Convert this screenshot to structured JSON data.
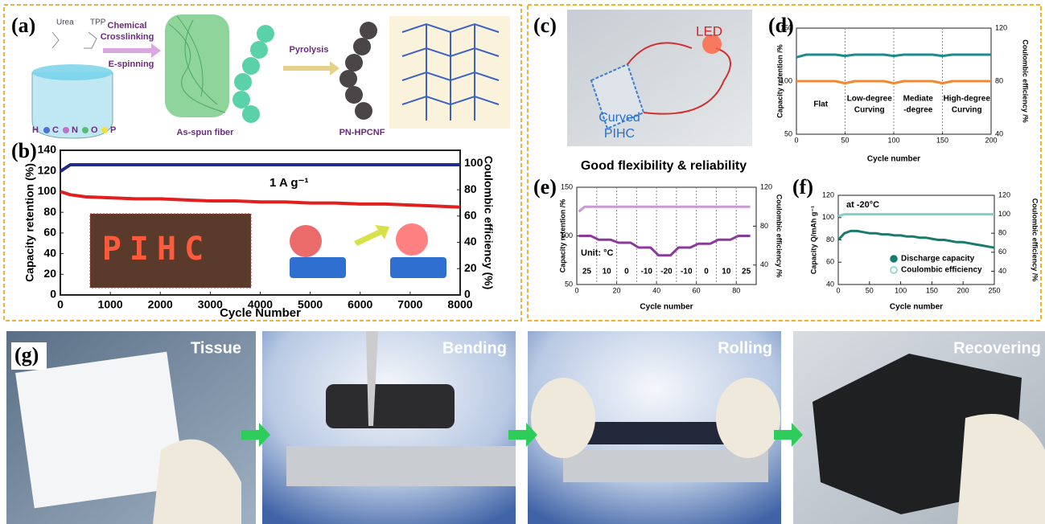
{
  "panel_a": {
    "label": "(a)",
    "urea": "Urea",
    "tpp": "TPP",
    "step1": [
      "Chemical",
      "Crosslinking"
    ],
    "step2": "E-spinning",
    "step3": "Pyrolysis",
    "fiber": "As-spun fiber",
    "product": "PN-HPCNF",
    "elements": [
      "H",
      "C",
      "N",
      "O",
      "P"
    ]
  },
  "panel_b": {
    "inset": "PIHC"
  },
  "panel_c": {
    "label": "(c)",
    "led": "LED",
    "device": [
      "Curved",
      "PIHC"
    ],
    "caption": "Good flexibility & reliability"
  },
  "panel_g": {
    "label": "(g)",
    "photos": [
      "Tissue",
      "Bending",
      "Rolling",
      "Recovering"
    ]
  },
  "chart_data": [
    {
      "type": "line",
      "label": "(b)",
      "annotation": "1 A g⁻¹",
      "xlabel": "Cycle Number",
      "ylabel": "Capacity retention (%)",
      "y2label": "Coulombic efficiency (%)",
      "x": [
        0,
        200,
        500,
        1000,
        1500,
        2000,
        2500,
        3000,
        3500,
        4000,
        4500,
        5000,
        5500,
        6000,
        6500,
        7000,
        7500,
        8000
      ],
      "series": [
        {
          "color": "#e02020",
          "values": [
            100,
            97,
            95,
            94,
            93,
            93,
            92,
            91,
            91,
            90,
            90,
            89,
            89,
            88,
            88,
            87,
            86,
            85
          ]
        },
        {
          "color": "#1f2a8a",
          "axis": "y2",
          "values": [
            94,
            99,
            99,
            99,
            99,
            99,
            99,
            99,
            99,
            99,
            99,
            99,
            99,
            99,
            99,
            99,
            99,
            99
          ]
        }
      ],
      "xlim": [
        0,
        8000
      ],
      "xticks": [
        0,
        1000,
        2000,
        3000,
        4000,
        5000,
        6000,
        7000,
        8000
      ],
      "ylim": [
        0,
        140
      ],
      "yticks": [
        0,
        20,
        40,
        60,
        80,
        100,
        120,
        140
      ],
      "y2lim": [
        0,
        110
      ],
      "y2ticks": [
        0,
        20,
        40,
        60,
        80,
        100
      ]
    },
    {
      "type": "line",
      "label": "(d)",
      "xlabel": "Cycle number",
      "ylabel": "Capacity retention /%",
      "y2label": "Coulombic efficiency /%",
      "x": [
        0,
        10,
        20,
        30,
        40,
        50,
        60,
        70,
        80,
        90,
        100,
        110,
        120,
        130,
        140,
        150,
        160,
        170,
        180,
        190,
        200
      ],
      "series": [
        {
          "color": "#f08a30",
          "values": [
            100,
            100,
            100,
            100,
            100,
            98,
            100,
            100,
            100,
            100,
            98,
            100,
            100,
            100,
            100,
            98,
            100,
            100,
            100,
            100,
            100
          ]
        },
        {
          "color": "#1a8c8c",
          "axis": "y2",
          "values": [
            98,
            100,
            100,
            100,
            100,
            99,
            100,
            100,
            100,
            100,
            99,
            100,
            100,
            100,
            100,
            99,
            100,
            100,
            100,
            100,
            100
          ]
        }
      ],
      "dividers": [
        50,
        100,
        150
      ],
      "regions": [
        [
          "Flat"
        ],
        [
          "Low-degree",
          "Curving"
        ],
        [
          "Mediate",
          "-degree"
        ],
        [
          "High-degree",
          "Curving"
        ]
      ],
      "xlim": [
        0,
        200
      ],
      "xticks": [
        0,
        50,
        100,
        150,
        200
      ],
      "ylim": [
        50,
        150
      ],
      "yticks": [
        50,
        100,
        150
      ],
      "y2lim": [
        40,
        120
      ],
      "y2ticks": [
        40,
        80,
        120
      ]
    },
    {
      "type": "line",
      "label": "(e)",
      "annotation": "Unit: °C",
      "xlabel": "Cycle number",
      "ylabel": "Capacity retention /%",
      "y2label": "Coulombic efficiency /%",
      "x": [
        1,
        4,
        7,
        11,
        14,
        17,
        21,
        24,
        27,
        31,
        34,
        37,
        41,
        44,
        47,
        51,
        54,
        57,
        61,
        64,
        67,
        71,
        74,
        77,
        81,
        84,
        87
      ],
      "series": [
        {
          "color": "#8a3a9a",
          "values": [
            100,
            100,
            100,
            96,
            96,
            96,
            93,
            93,
            93,
            88,
            88,
            88,
            80,
            80,
            80,
            88,
            88,
            88,
            92,
            92,
            92,
            96,
            96,
            96,
            100,
            100,
            100
          ]
        },
        {
          "color": "#c99ad4",
          "axis": "y2",
          "values": [
            95,
            100,
            100,
            100,
            100,
            100,
            100,
            100,
            100,
            100,
            100,
            100,
            100,
            100,
            100,
            100,
            100,
            100,
            100,
            100,
            100,
            100,
            100,
            100,
            100,
            100,
            100
          ]
        }
      ],
      "dividers": [
        10,
        20,
        30,
        40,
        50,
        60,
        70,
        80
      ],
      "regions": [
        [
          "25"
        ],
        [
          "10"
        ],
        [
          "0"
        ],
        [
          "-10"
        ],
        [
          "-20"
        ],
        [
          "-10"
        ],
        [
          "0"
        ],
        [
          "10"
        ],
        [
          "25"
        ]
      ],
      "xlim": [
        0,
        90
      ],
      "xticks": [
        0,
        20,
        40,
        60,
        80
      ],
      "ylim": [
        50,
        150
      ],
      "yticks": [
        50,
        100,
        150
      ],
      "y2lim": [
        20,
        120
      ],
      "y2ticks": [
        40,
        80,
        120
      ]
    },
    {
      "type": "line",
      "label": "(f)",
      "annotation": "at -20°C",
      "xlabel": "Cycle number",
      "ylabel": "Capacity Q/mAh g⁻¹",
      "y2label": "Coulombic efficiency /%",
      "x": [
        0,
        10,
        20,
        30,
        40,
        50,
        60,
        70,
        80,
        90,
        100,
        110,
        120,
        130,
        140,
        150,
        160,
        170,
        180,
        190,
        200,
        210,
        220,
        230,
        240,
        250
      ],
      "series": [
        {
          "name": "Discharge capacity",
          "color": "#1b7a6e",
          "values": [
            80,
            86,
            88,
            88,
            87,
            86,
            86,
            85,
            85,
            84,
            84,
            83,
            83,
            82,
            82,
            81,
            80,
            80,
            79,
            78,
            78,
            77,
            76,
            75,
            74,
            73
          ]
        },
        {
          "name": "Coulombic efficiency",
          "color": "#7fd0c8",
          "axis": "y2",
          "values": [
            98,
            100,
            100,
            100,
            100,
            100,
            100,
            100,
            100,
            100,
            100,
            100,
            100,
            100,
            100,
            100,
            100,
            100,
            100,
            100,
            100,
            100,
            100,
            100,
            100,
            100
          ]
        }
      ],
      "legend": "lower right",
      "xlim": [
        0,
        250
      ],
      "xticks": [
        0,
        50,
        100,
        150,
        200,
        250
      ],
      "ylim": [
        40,
        120
      ],
      "yticks": [
        40,
        60,
        80,
        100,
        120
      ],
      "y2lim": [
        26,
        120
      ],
      "y2ticks": [
        40,
        60,
        80,
        100,
        120
      ]
    }
  ]
}
